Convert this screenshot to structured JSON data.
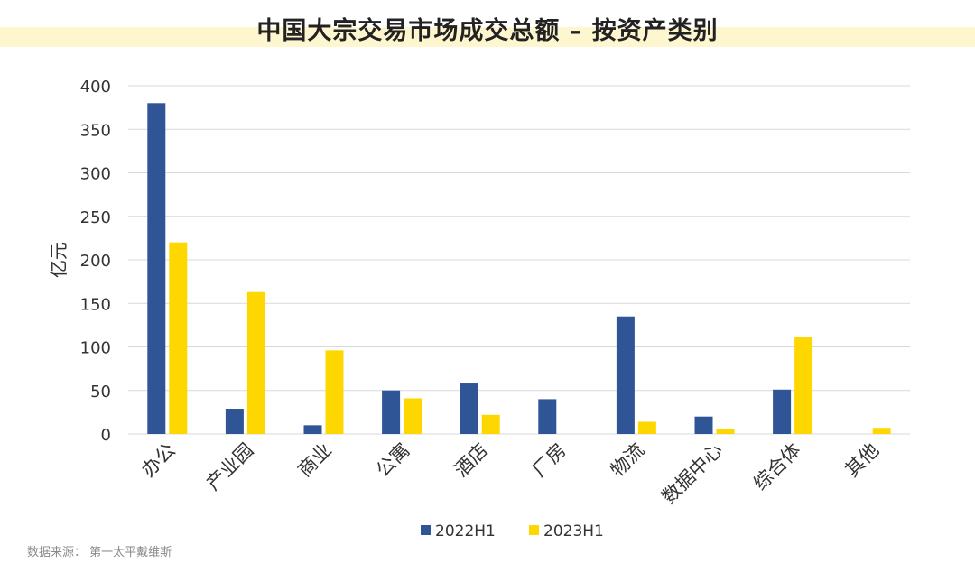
{
  "header": {
    "title": "中国大宗交易市场成交总额 – 按资产类别"
  },
  "footer": {
    "source": "数据来源：  第一太平戴维斯"
  },
  "colors": {
    "series_2022": "#2f5597",
    "series_2023": "#ffd700",
    "grid": "#d9d9d9",
    "title_band": "#fdf6cf"
  },
  "chart_data": {
    "type": "bar",
    "title": "中国大宗交易市场成交总额 – 按资产类别",
    "ylabel": "亿元",
    "xlabel": "",
    "ylim": [
      0,
      400
    ],
    "yticks": [
      0,
      50,
      100,
      150,
      200,
      250,
      300,
      350,
      400
    ],
    "grid": true,
    "legend": "bottom-center",
    "categories": [
      "办公",
      "产业园",
      "商业",
      "公寓",
      "酒店",
      "厂房",
      "物流",
      "数据中心",
      "综合体",
      "其他"
    ],
    "series": [
      {
        "name": "2022H1",
        "color": "#2f5597",
        "values": [
          380,
          29,
          10,
          50,
          58,
          40,
          135,
          20,
          51,
          0
        ]
      },
      {
        "name": "2023H1",
        "color": "#ffd700",
        "values": [
          220,
          163,
          96,
          41,
          22,
          0,
          14,
          6,
          111,
          7
        ]
      }
    ]
  }
}
